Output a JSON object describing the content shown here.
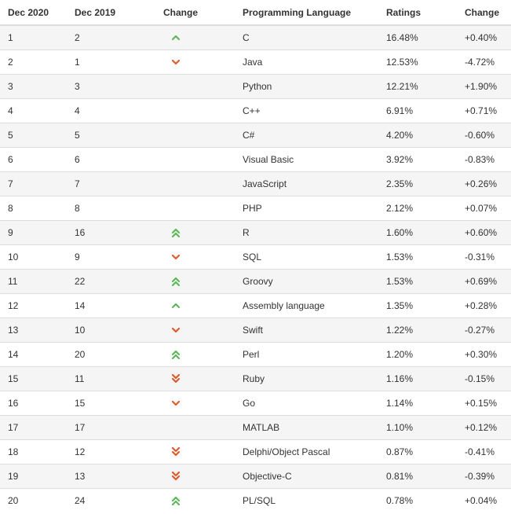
{
  "headers": {
    "dec2020": "Dec 2020",
    "dec2019": "Dec 2019",
    "change": "Change",
    "language": "Programming Language",
    "ratings": "Ratings",
    "ratings_change": "Change"
  },
  "colors": {
    "up": "#5cb85c",
    "down": "#e05a2b",
    "stripe": "#f5f5f5",
    "border": "#dddddd"
  },
  "rows": [
    {
      "dec2020": "1",
      "dec2019": "2",
      "trend": "up",
      "language": "C",
      "rating": "16.48%",
      "delta": "+0.40%"
    },
    {
      "dec2020": "2",
      "dec2019": "1",
      "trend": "down",
      "language": "Java",
      "rating": "12.53%",
      "delta": "-4.72%"
    },
    {
      "dec2020": "3",
      "dec2019": "3",
      "trend": "none",
      "language": "Python",
      "rating": "12.21%",
      "delta": "+1.90%"
    },
    {
      "dec2020": "4",
      "dec2019": "4",
      "trend": "none",
      "language": "C++",
      "rating": "6.91%",
      "delta": "+0.71%"
    },
    {
      "dec2020": "5",
      "dec2019": "5",
      "trend": "none",
      "language": "C#",
      "rating": "4.20%",
      "delta": "-0.60%"
    },
    {
      "dec2020": "6",
      "dec2019": "6",
      "trend": "none",
      "language": "Visual Basic",
      "rating": "3.92%",
      "delta": "-0.83%"
    },
    {
      "dec2020": "7",
      "dec2019": "7",
      "trend": "none",
      "language": "JavaScript",
      "rating": "2.35%",
      "delta": "+0.26%"
    },
    {
      "dec2020": "8",
      "dec2019": "8",
      "trend": "none",
      "language": "PHP",
      "rating": "2.12%",
      "delta": "+0.07%"
    },
    {
      "dec2020": "9",
      "dec2019": "16",
      "trend": "up2",
      "language": "R",
      "rating": "1.60%",
      "delta": "+0.60%"
    },
    {
      "dec2020": "10",
      "dec2019": "9",
      "trend": "down",
      "language": "SQL",
      "rating": "1.53%",
      "delta": "-0.31%"
    },
    {
      "dec2020": "11",
      "dec2019": "22",
      "trend": "up2",
      "language": "Groovy",
      "rating": "1.53%",
      "delta": "+0.69%"
    },
    {
      "dec2020": "12",
      "dec2019": "14",
      "trend": "up",
      "language": "Assembly language",
      "rating": "1.35%",
      "delta": "+0.28%"
    },
    {
      "dec2020": "13",
      "dec2019": "10",
      "trend": "down",
      "language": "Swift",
      "rating": "1.22%",
      "delta": "-0.27%"
    },
    {
      "dec2020": "14",
      "dec2019": "20",
      "trend": "up2",
      "language": "Perl",
      "rating": "1.20%",
      "delta": "+0.30%"
    },
    {
      "dec2020": "15",
      "dec2019": "11",
      "trend": "down2",
      "language": "Ruby",
      "rating": "1.16%",
      "delta": "-0.15%"
    },
    {
      "dec2020": "16",
      "dec2019": "15",
      "trend": "down",
      "language": "Go",
      "rating": "1.14%",
      "delta": "+0.15%"
    },
    {
      "dec2020": "17",
      "dec2019": "17",
      "trend": "none",
      "language": "MATLAB",
      "rating": "1.10%",
      "delta": "+0.12%"
    },
    {
      "dec2020": "18",
      "dec2019": "12",
      "trend": "down2",
      "language": "Delphi/Object Pascal",
      "rating": "0.87%",
      "delta": "-0.41%"
    },
    {
      "dec2020": "19",
      "dec2019": "13",
      "trend": "down2",
      "language": "Objective-C",
      "rating": "0.81%",
      "delta": "-0.39%"
    },
    {
      "dec2020": "20",
      "dec2019": "24",
      "trend": "up2",
      "language": "PL/SQL",
      "rating": "0.78%",
      "delta": "+0.04%"
    }
  ]
}
